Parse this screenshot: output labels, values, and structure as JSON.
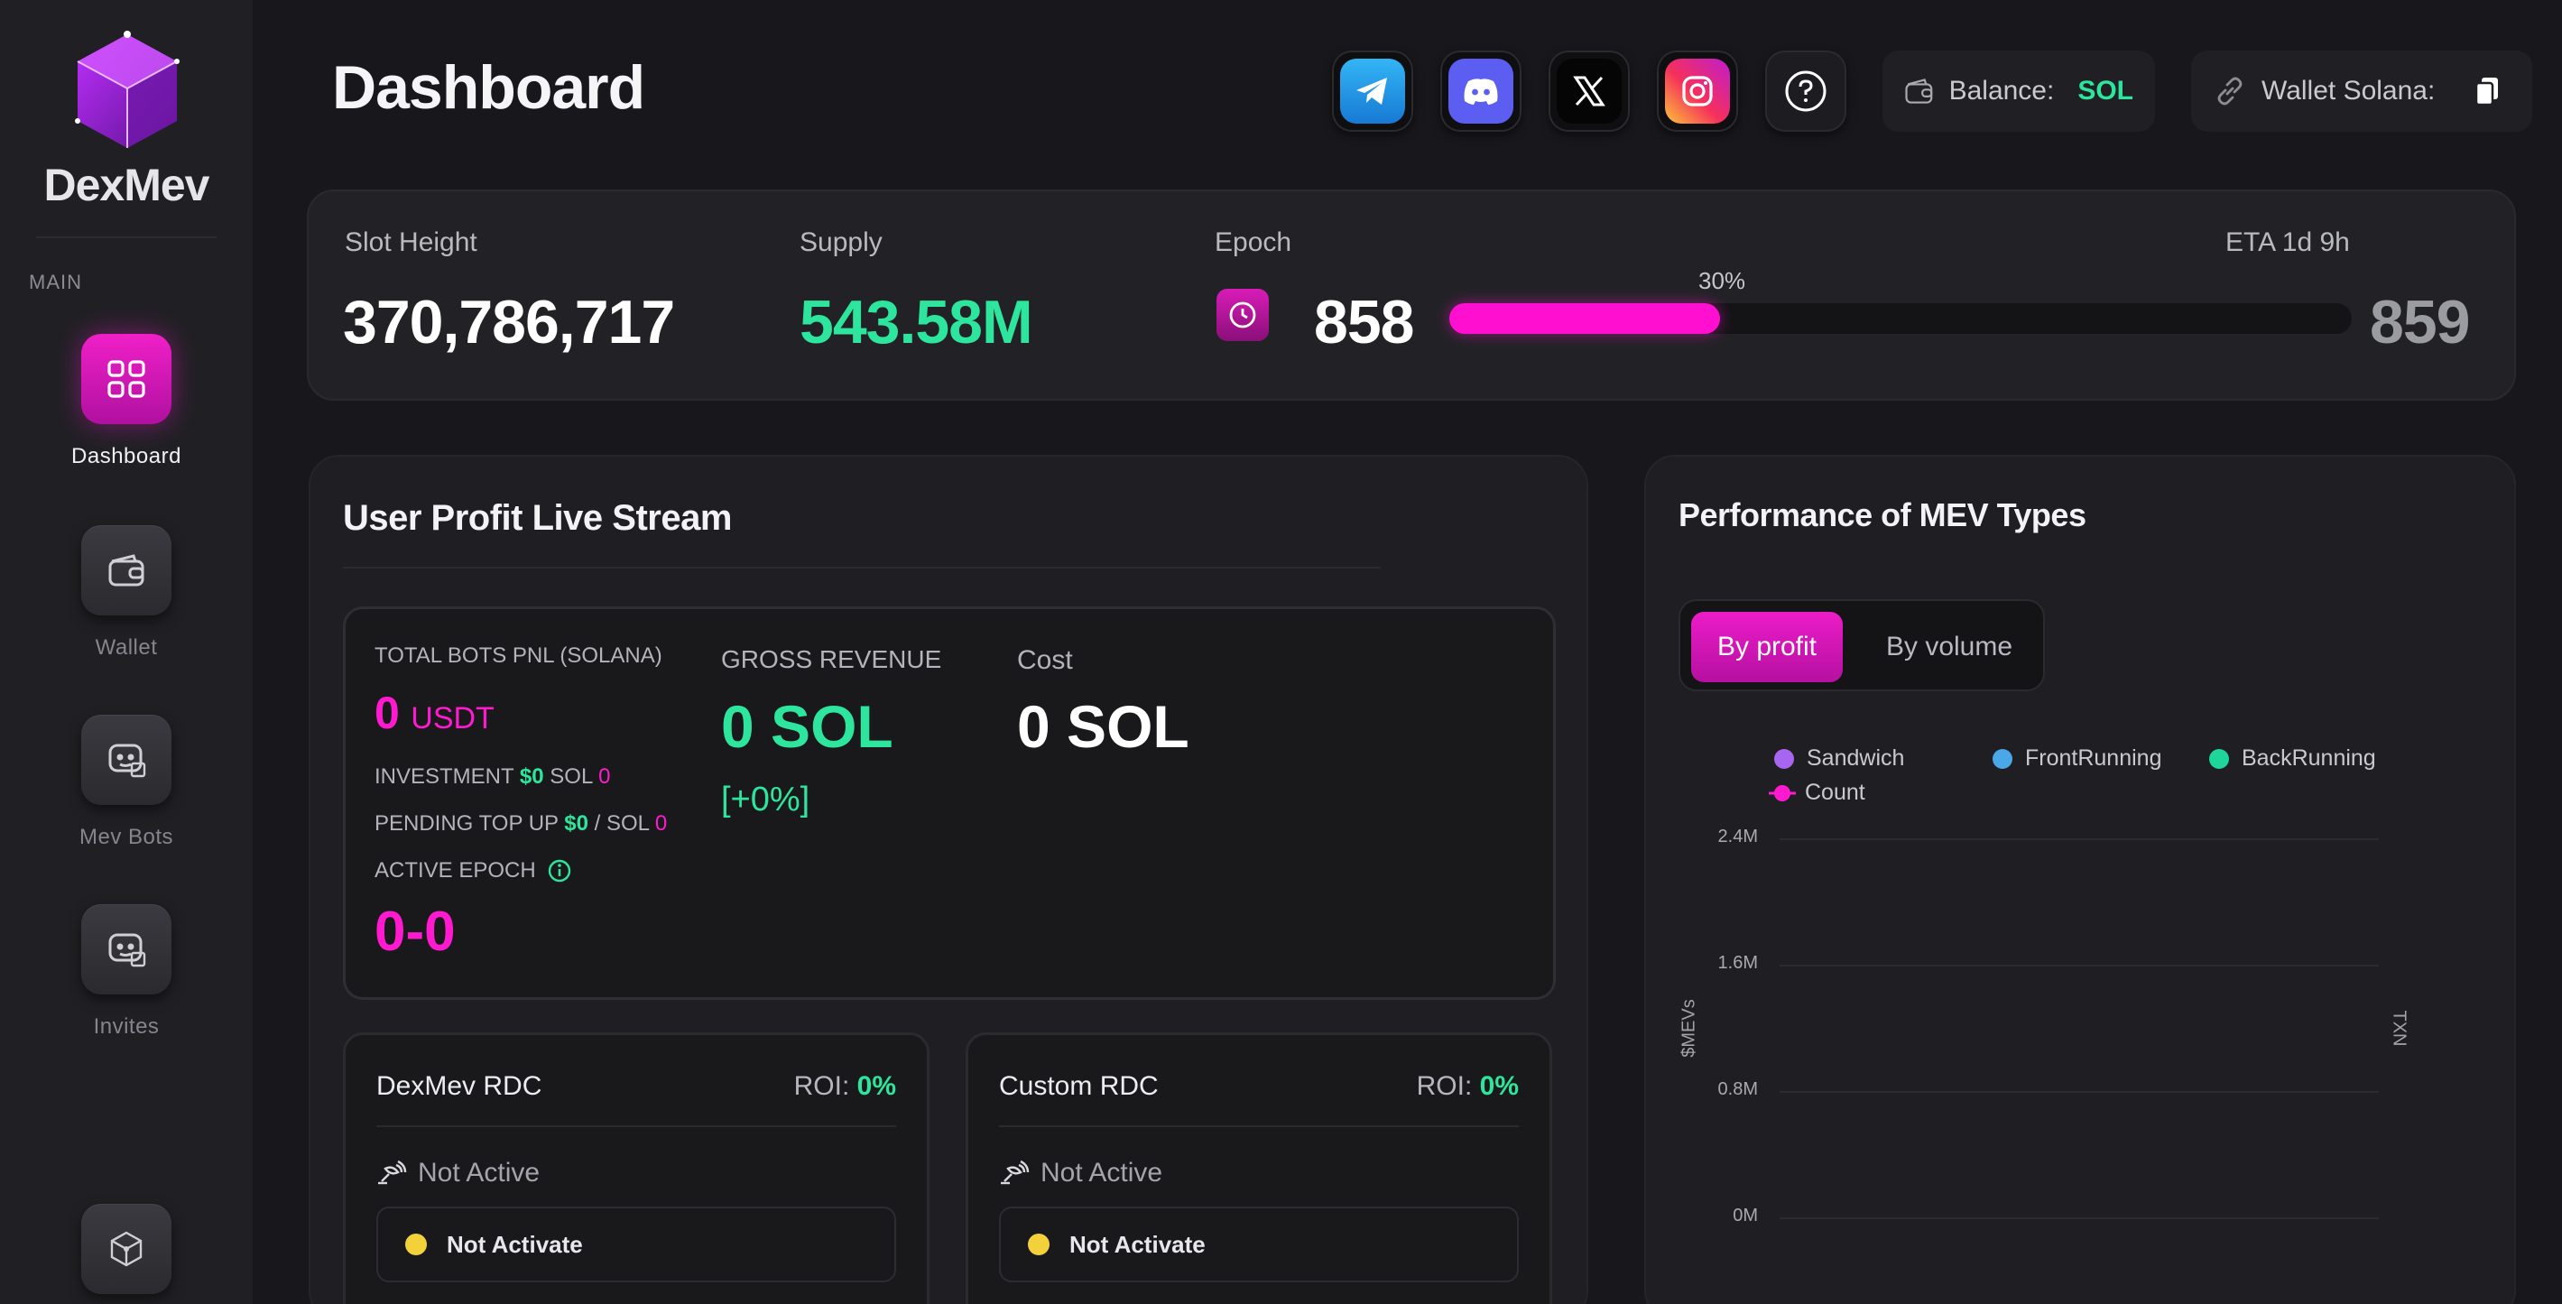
{
  "brand": {
    "name": "DexMev"
  },
  "sidebar": {
    "section_label": "MAIN",
    "items": [
      {
        "label": "Dashboard",
        "icon": "grid-icon",
        "active": true
      },
      {
        "label": "Wallet",
        "icon": "wallet-icon",
        "active": false
      },
      {
        "label": "Mev Bots",
        "icon": "bot-icon",
        "active": false
      },
      {
        "label": "Invites",
        "icon": "bot-icon",
        "active": false
      },
      {
        "label": "",
        "icon": "network-cube-icon",
        "active": false
      }
    ]
  },
  "header": {
    "title": "Dashboard",
    "socials": [
      "telegram-icon",
      "discord-icon",
      "x-icon",
      "instagram-icon",
      "help-icon"
    ],
    "balance": {
      "label": "Balance:",
      "value": "SOL"
    },
    "wallet": {
      "label": "Wallet Solana:"
    }
  },
  "stats": {
    "slot_height": {
      "label": "Slot Height",
      "value": "370,786,717"
    },
    "supply": {
      "label": "Supply",
      "value": "543.58M"
    },
    "epoch": {
      "label": "Epoch",
      "current": "858",
      "next": "859",
      "progress_label": "30%",
      "progress": 0.3,
      "eta": "ETA 1d 9h"
    }
  },
  "profit_stream": {
    "title": "User Profit Live Stream",
    "total_bots_pnl_label": "TOTAL BOTS PNL (SOLANA)",
    "total_value": "0",
    "total_unit": "USDT",
    "investment_label": "INVESTMENT",
    "investment_usd": "$0",
    "investment_sol_label": "SOL",
    "investment_sol": "0",
    "pending_label": "PENDING TOP UP",
    "pending_usd": "$0",
    "pending_sep": "/ SOL",
    "pending_sol": "0",
    "active_epoch_label": "ACTIVE EPOCH",
    "active_epoch_value": "0-0",
    "gross_label": "GROSS REVENUE",
    "gross_value": "0 SOL",
    "gross_change": "[+0%]",
    "cost_label": "Cost",
    "cost_value": "0 SOL"
  },
  "rdc": [
    {
      "title": "DexMev RDC",
      "roi_label": "ROI:",
      "roi_value": "0%",
      "status": "Not Active",
      "button": "Not Activate"
    },
    {
      "title": "Custom RDC",
      "roi_label": "ROI:",
      "roi_value": "0%",
      "status": "Not Active",
      "button": "Not Activate"
    }
  ],
  "performance": {
    "title": "Performance of MEV Types",
    "toggle": {
      "on": "By profit",
      "off": "By volume"
    }
  },
  "chart_data": {
    "type": "bar",
    "series": [
      {
        "name": "Sandwich",
        "color": "#a866f0",
        "values": []
      },
      {
        "name": "FrontRunning",
        "color": "#4aa8e8",
        "values": []
      },
      {
        "name": "BackRunning",
        "color": "#1fd69a",
        "values": []
      },
      {
        "name": "Count",
        "color": "#ff1ad0",
        "values": []
      }
    ],
    "yticks": [
      "2.4M",
      "1.6M",
      "0.8M",
      "0M"
    ],
    "ylabel": "$MEVs",
    "y2label": "TXN",
    "ylim": [
      0,
      2400000
    ]
  }
}
